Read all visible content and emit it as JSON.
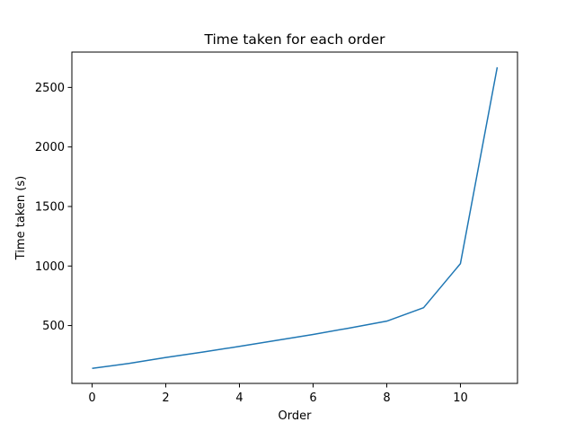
{
  "chart_data": {
    "type": "line",
    "title": "Time taken for each order",
    "xlabel": "Order",
    "ylabel": "Time taken (s)",
    "x": [
      0,
      1,
      2,
      3,
      4,
      5,
      6,
      7,
      8,
      9,
      10,
      11
    ],
    "series": [
      {
        "values": [
          140,
          182,
          232,
          277,
          325,
          375,
          425,
          480,
          537,
          650,
          1020,
          2670
        ],
        "color": "#1f77b4"
      }
    ],
    "xlim": [
      -0.55,
      11.55
    ],
    "ylim": [
      14,
      2797
    ],
    "xticks": [
      0,
      2,
      4,
      6,
      8,
      10
    ],
    "yticks": [
      500,
      1000,
      1500,
      2000,
      2500
    ],
    "xtick_labels": [
      "0",
      "2",
      "4",
      "6",
      "8",
      "10"
    ],
    "ytick_labels": [
      "500",
      "1000",
      "1500",
      "2000",
      "2500"
    ],
    "grid": false,
    "legend": "none"
  }
}
